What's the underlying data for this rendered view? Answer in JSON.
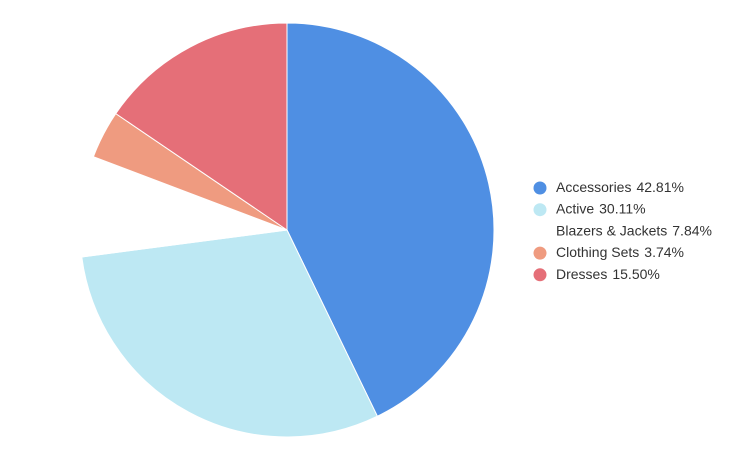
{
  "chart_data": {
    "type": "pie",
    "categories": [
      "Accessories",
      "Active",
      "Blazers & Jackets",
      "Clothing Sets",
      "Dresses"
    ],
    "values": [
      42.81,
      30.11,
      7.84,
      3.74,
      15.5
    ],
    "value_labels": [
      "42.81%",
      "30.11%",
      "7.84%",
      "3.74%",
      "15.50%"
    ],
    "colors": [
      "#4f8fe3",
      "#bde8f3",
      "#ffffff",
      "#ef9b80",
      "#e56f78"
    ],
    "legend": "right"
  }
}
